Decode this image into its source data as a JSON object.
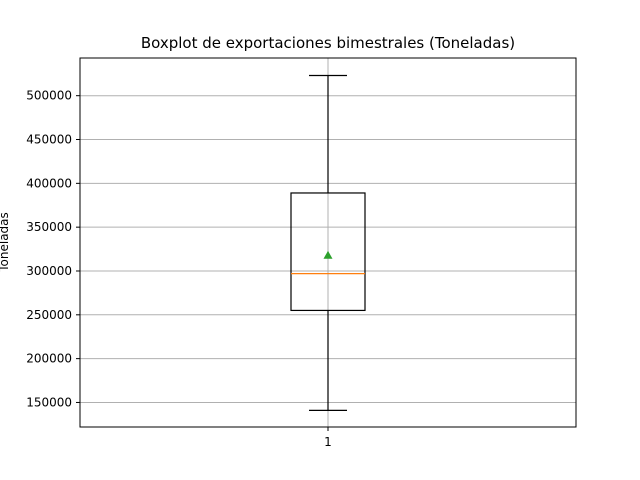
{
  "chart_data": {
    "type": "boxplot",
    "title": "Boxplot de exportaciones bimestrales (Toneladas)",
    "xlabel": "",
    "ylabel": "Toneladas",
    "categories": [
      "1"
    ],
    "ylim": [
      122000,
      543000
    ],
    "yticks": [
      150000,
      200000,
      250000,
      300000,
      350000,
      400000,
      450000,
      500000
    ],
    "grid": true,
    "boxes": [
      {
        "category": "1",
        "whisker_low": 141000,
        "q1": 255000,
        "median": 297000,
        "q3": 389000,
        "whisker_high": 523000,
        "mean": 318000
      }
    ],
    "colors": {
      "box": "#000000",
      "median": "#ff7f0e",
      "mean": "#2ca02c",
      "grid": "#b0b0b0"
    }
  }
}
